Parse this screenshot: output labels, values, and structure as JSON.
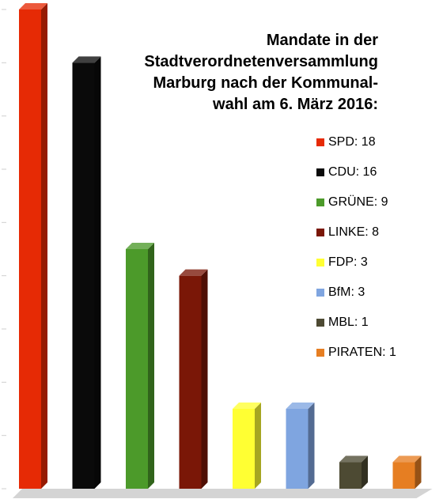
{
  "chart_data": {
    "type": "bar",
    "title": "Mandate in der\nStadtverordnetenversammlung\nMarburg nach der Kommunal-\nwahl am 6. März 2016:",
    "xlabel": "",
    "ylabel": "",
    "ylim": [
      0,
      18
    ],
    "grid": false,
    "legend_position": "right",
    "categories": [
      "SPD",
      "CDU",
      "GRÜNE",
      "LINKE",
      "FDP",
      "BfM",
      "MBL",
      "PIRATEN"
    ],
    "values": [
      18,
      16,
      9,
      8,
      3,
      3,
      1,
      1
    ],
    "legend": [
      "SPD: 18",
      "CDU: 16",
      "GRÜNE: 9",
      "LINKE: 8",
      "FDP: 3",
      "BfM: 3",
      "MBL: 1",
      "PIRATEN: 1"
    ],
    "colors": [
      "#e62a05",
      "#0a0a0a",
      "#4c9a2a",
      "#7a1707",
      "#ffff33",
      "#7fa5e0",
      "#4d4a33",
      "#e67e22"
    ]
  }
}
